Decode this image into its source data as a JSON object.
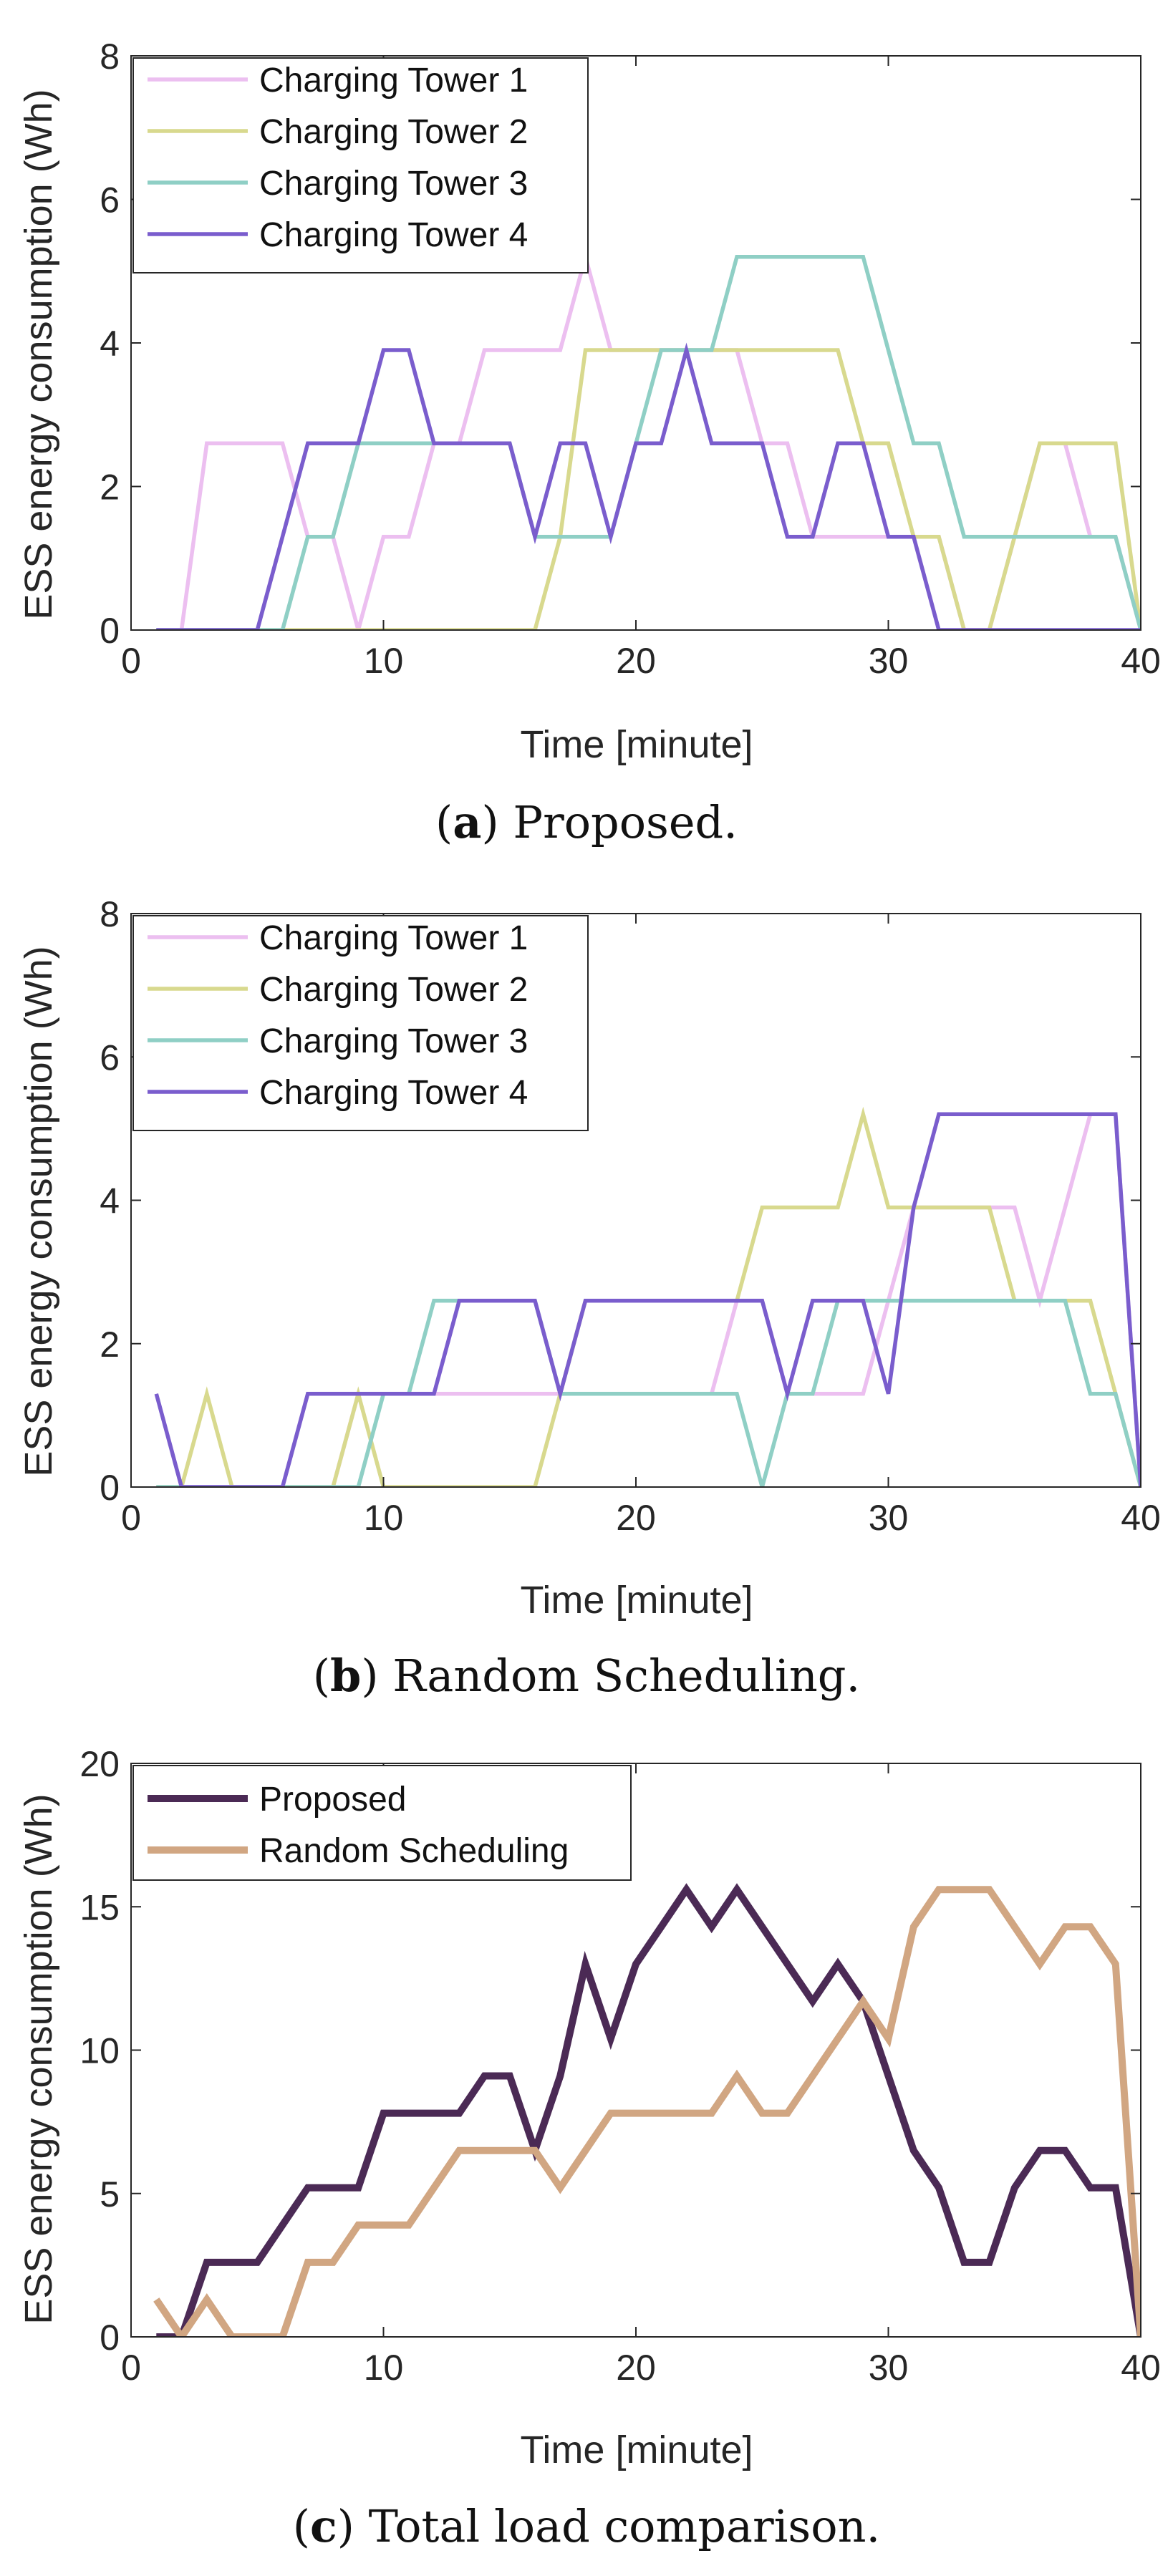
{
  "captions": [
    {
      "letter": "a",
      "text": " Proposed."
    },
    {
      "letter": "b",
      "text": " Random Scheduling."
    },
    {
      "letter": "c",
      "text": " Total load comparison."
    }
  ],
  "colors": {
    "tower1": "#ecbff0",
    "tower2": "#d8d98e",
    "tower3": "#8fcfc5",
    "tower4": "#7a5dcd",
    "proposed": "#4b2a55",
    "random": "#d1a682"
  },
  "chart_data": [
    {
      "id": "a",
      "type": "line",
      "title": "",
      "xlabel": "Time [minute]",
      "ylabel": "ESS energy consumption (Wh)",
      "xlim": [
        0,
        40
      ],
      "ylim": [
        0,
        8
      ],
      "xticks": [
        0,
        10,
        20,
        30,
        40
      ],
      "yticks": [
        0,
        2,
        4,
        6,
        8
      ],
      "legend_position": "top-left",
      "x": [
        1,
        2,
        3,
        4,
        5,
        6,
        7,
        8,
        9,
        10,
        11,
        12,
        13,
        14,
        15,
        16,
        17,
        18,
        19,
        20,
        21,
        22,
        23,
        24,
        25,
        26,
        27,
        28,
        29,
        30,
        31,
        32,
        33,
        34,
        35,
        36,
        37,
        38,
        39,
        40
      ],
      "series": [
        {
          "name": "Charging Tower 1",
          "color_key": "tower1",
          "values": [
            0,
            0,
            2.6,
            2.6,
            2.6,
            2.6,
            1.3,
            1.3,
            0,
            1.3,
            1.3,
            2.6,
            2.6,
            3.9,
            3.9,
            3.9,
            3.9,
            5.2,
            3.9,
            3.9,
            3.9,
            3.9,
            3.9,
            3.9,
            2.6,
            2.6,
            1.3,
            1.3,
            1.3,
            1.3,
            1.3,
            1.3,
            0,
            0,
            1.3,
            2.6,
            2.6,
            1.3,
            1.3,
            0
          ]
        },
        {
          "name": "Charging Tower 2",
          "color_key": "tower2",
          "values": [
            0,
            0,
            0,
            0,
            0,
            0,
            0,
            0,
            0,
            0,
            0,
            0,
            0,
            0,
            0,
            0,
            1.3,
            3.9,
            3.9,
            3.9,
            3.9,
            3.9,
            3.9,
            3.9,
            3.9,
            3.9,
            3.9,
            3.9,
            2.6,
            2.6,
            1.3,
            1.3,
            0,
            0,
            1.3,
            2.6,
            2.6,
            2.6,
            2.6,
            0
          ]
        },
        {
          "name": "Charging Tower 3",
          "color_key": "tower3",
          "values": [
            0,
            0,
            0,
            0,
            0,
            0,
            1.3,
            1.3,
            2.6,
            2.6,
            2.6,
            2.6,
            2.6,
            2.6,
            2.6,
            1.3,
            1.3,
            1.3,
            1.3,
            2.6,
            3.9,
            3.9,
            3.9,
            5.2,
            5.2,
            5.2,
            5.2,
            5.2,
            5.2,
            3.9,
            2.6,
            2.6,
            1.3,
            1.3,
            1.3,
            1.3,
            1.3,
            1.3,
            1.3,
            0
          ]
        },
        {
          "name": "Charging Tower 4",
          "color_key": "tower4",
          "values": [
            0,
            0,
            0,
            0,
            0,
            1.3,
            2.6,
            2.6,
            2.6,
            3.9,
            3.9,
            2.6,
            2.6,
            2.6,
            2.6,
            1.3,
            2.6,
            2.6,
            1.3,
            2.6,
            2.6,
            3.9,
            2.6,
            2.6,
            2.6,
            1.3,
            1.3,
            2.6,
            2.6,
            1.3,
            1.3,
            0,
            0,
            0,
            0,
            0,
            0,
            0,
            0,
            0
          ]
        }
      ]
    },
    {
      "id": "b",
      "type": "line",
      "title": "",
      "xlabel": "Time [minute]",
      "ylabel": "ESS energy consumption (Wh)",
      "xlim": [
        0,
        40
      ],
      "ylim": [
        0,
        8
      ],
      "xticks": [
        0,
        10,
        20,
        30,
        40
      ],
      "yticks": [
        0,
        2,
        4,
        6,
        8
      ],
      "legend_position": "top-left",
      "x": [
        1,
        2,
        3,
        4,
        5,
        6,
        7,
        8,
        9,
        10,
        11,
        12,
        13,
        14,
        15,
        16,
        17,
        18,
        19,
        20,
        21,
        22,
        23,
        24,
        25,
        26,
        27,
        28,
        29,
        30,
        31,
        32,
        33,
        34,
        35,
        36,
        37,
        38,
        39,
        40
      ],
      "series": [
        {
          "name": "Charging Tower 1",
          "color_key": "tower1",
          "values": [
            0,
            0,
            0,
            0,
            0,
            0,
            0,
            0,
            1.3,
            1.3,
            1.3,
            1.3,
            1.3,
            1.3,
            1.3,
            1.3,
            1.3,
            1.3,
            1.3,
            1.3,
            1.3,
            1.3,
            1.3,
            2.6,
            2.6,
            1.3,
            1.3,
            1.3,
            1.3,
            2.6,
            3.9,
            3.9,
            3.9,
            3.9,
            3.9,
            2.6,
            3.9,
            5.2,
            5.2,
            0
          ]
        },
        {
          "name": "Charging Tower 2",
          "color_key": "tower2",
          "values": [
            0,
            0,
            1.3,
            0,
            0,
            0,
            0,
            0,
            1.3,
            0,
            0,
            0,
            0,
            0,
            0,
            0,
            1.3,
            2.6,
            2.6,
            2.6,
            2.6,
            2.6,
            2.6,
            2.6,
            3.9,
            3.9,
            3.9,
            3.9,
            5.2,
            3.9,
            3.9,
            3.9,
            3.9,
            3.9,
            2.6,
            2.6,
            2.6,
            2.6,
            1.3,
            0
          ]
        },
        {
          "name": "Charging Tower 3",
          "color_key": "tower3",
          "values": [
            0,
            0,
            0,
            0,
            0,
            0,
            0,
            0,
            0,
            1.3,
            1.3,
            2.6,
            2.6,
            2.6,
            2.6,
            2.6,
            1.3,
            1.3,
            1.3,
            1.3,
            1.3,
            1.3,
            1.3,
            1.3,
            0,
            1.3,
            1.3,
            2.6,
            2.6,
            2.6,
            2.6,
            2.6,
            2.6,
            2.6,
            2.6,
            2.6,
            2.6,
            1.3,
            1.3,
            0
          ]
        },
        {
          "name": "Charging Tower 4",
          "color_key": "tower4",
          "values": [
            1.3,
            0,
            0,
            0,
            0,
            0,
            1.3,
            1.3,
            1.3,
            1.3,
            1.3,
            1.3,
            2.6,
            2.6,
            2.6,
            2.6,
            1.3,
            2.6,
            2.6,
            2.6,
            2.6,
            2.6,
            2.6,
            2.6,
            2.6,
            1.3,
            2.6,
            2.6,
            2.6,
            1.3,
            3.9,
            5.2,
            5.2,
            5.2,
            5.2,
            5.2,
            5.2,
            5.2,
            5.2,
            0
          ]
        }
      ]
    },
    {
      "id": "c",
      "type": "line",
      "title": "",
      "xlabel": "Time [minute]",
      "ylabel": "ESS energy consumption (Wh)",
      "xlim": [
        0,
        40
      ],
      "ylim": [
        0,
        20
      ],
      "xticks": [
        0,
        10,
        20,
        30,
        40
      ],
      "yticks": [
        0,
        5,
        10,
        15,
        20
      ],
      "legend_position": "top-left",
      "x": [
        1,
        2,
        3,
        4,
        5,
        6,
        7,
        8,
        9,
        10,
        11,
        12,
        13,
        14,
        15,
        16,
        17,
        18,
        19,
        20,
        21,
        22,
        23,
        24,
        25,
        26,
        27,
        28,
        29,
        30,
        31,
        32,
        33,
        34,
        35,
        36,
        37,
        38,
        39,
        40
      ],
      "series": [
        {
          "name": "Proposed",
          "color_key": "proposed",
          "values": [
            0,
            0,
            2.6,
            2.6,
            2.6,
            3.9,
            5.2,
            5.2,
            5.2,
            7.8,
            7.8,
            7.8,
            7.8,
            9.1,
            9.1,
            6.5,
            9.1,
            13,
            10.4,
            13,
            14.3,
            15.6,
            14.3,
            15.6,
            14.3,
            13,
            11.7,
            13,
            11.7,
            9.1,
            6.5,
            5.2,
            2.6,
            2.6,
            5.2,
            6.5,
            6.5,
            5.2,
            5.2,
            0
          ]
        },
        {
          "name": "Random Scheduling",
          "color_key": "random",
          "values": [
            1.3,
            0,
            1.3,
            0,
            0,
            0,
            2.6,
            2.6,
            3.9,
            3.9,
            3.9,
            5.2,
            6.5,
            6.5,
            6.5,
            6.5,
            5.2,
            6.5,
            7.8,
            7.8,
            7.8,
            7.8,
            7.8,
            9.1,
            7.8,
            7.8,
            9.1,
            10.4,
            11.7,
            10.4,
            14.3,
            15.6,
            15.6,
            15.6,
            14.3,
            13,
            14.3,
            14.3,
            13,
            0
          ]
        }
      ]
    }
  ]
}
